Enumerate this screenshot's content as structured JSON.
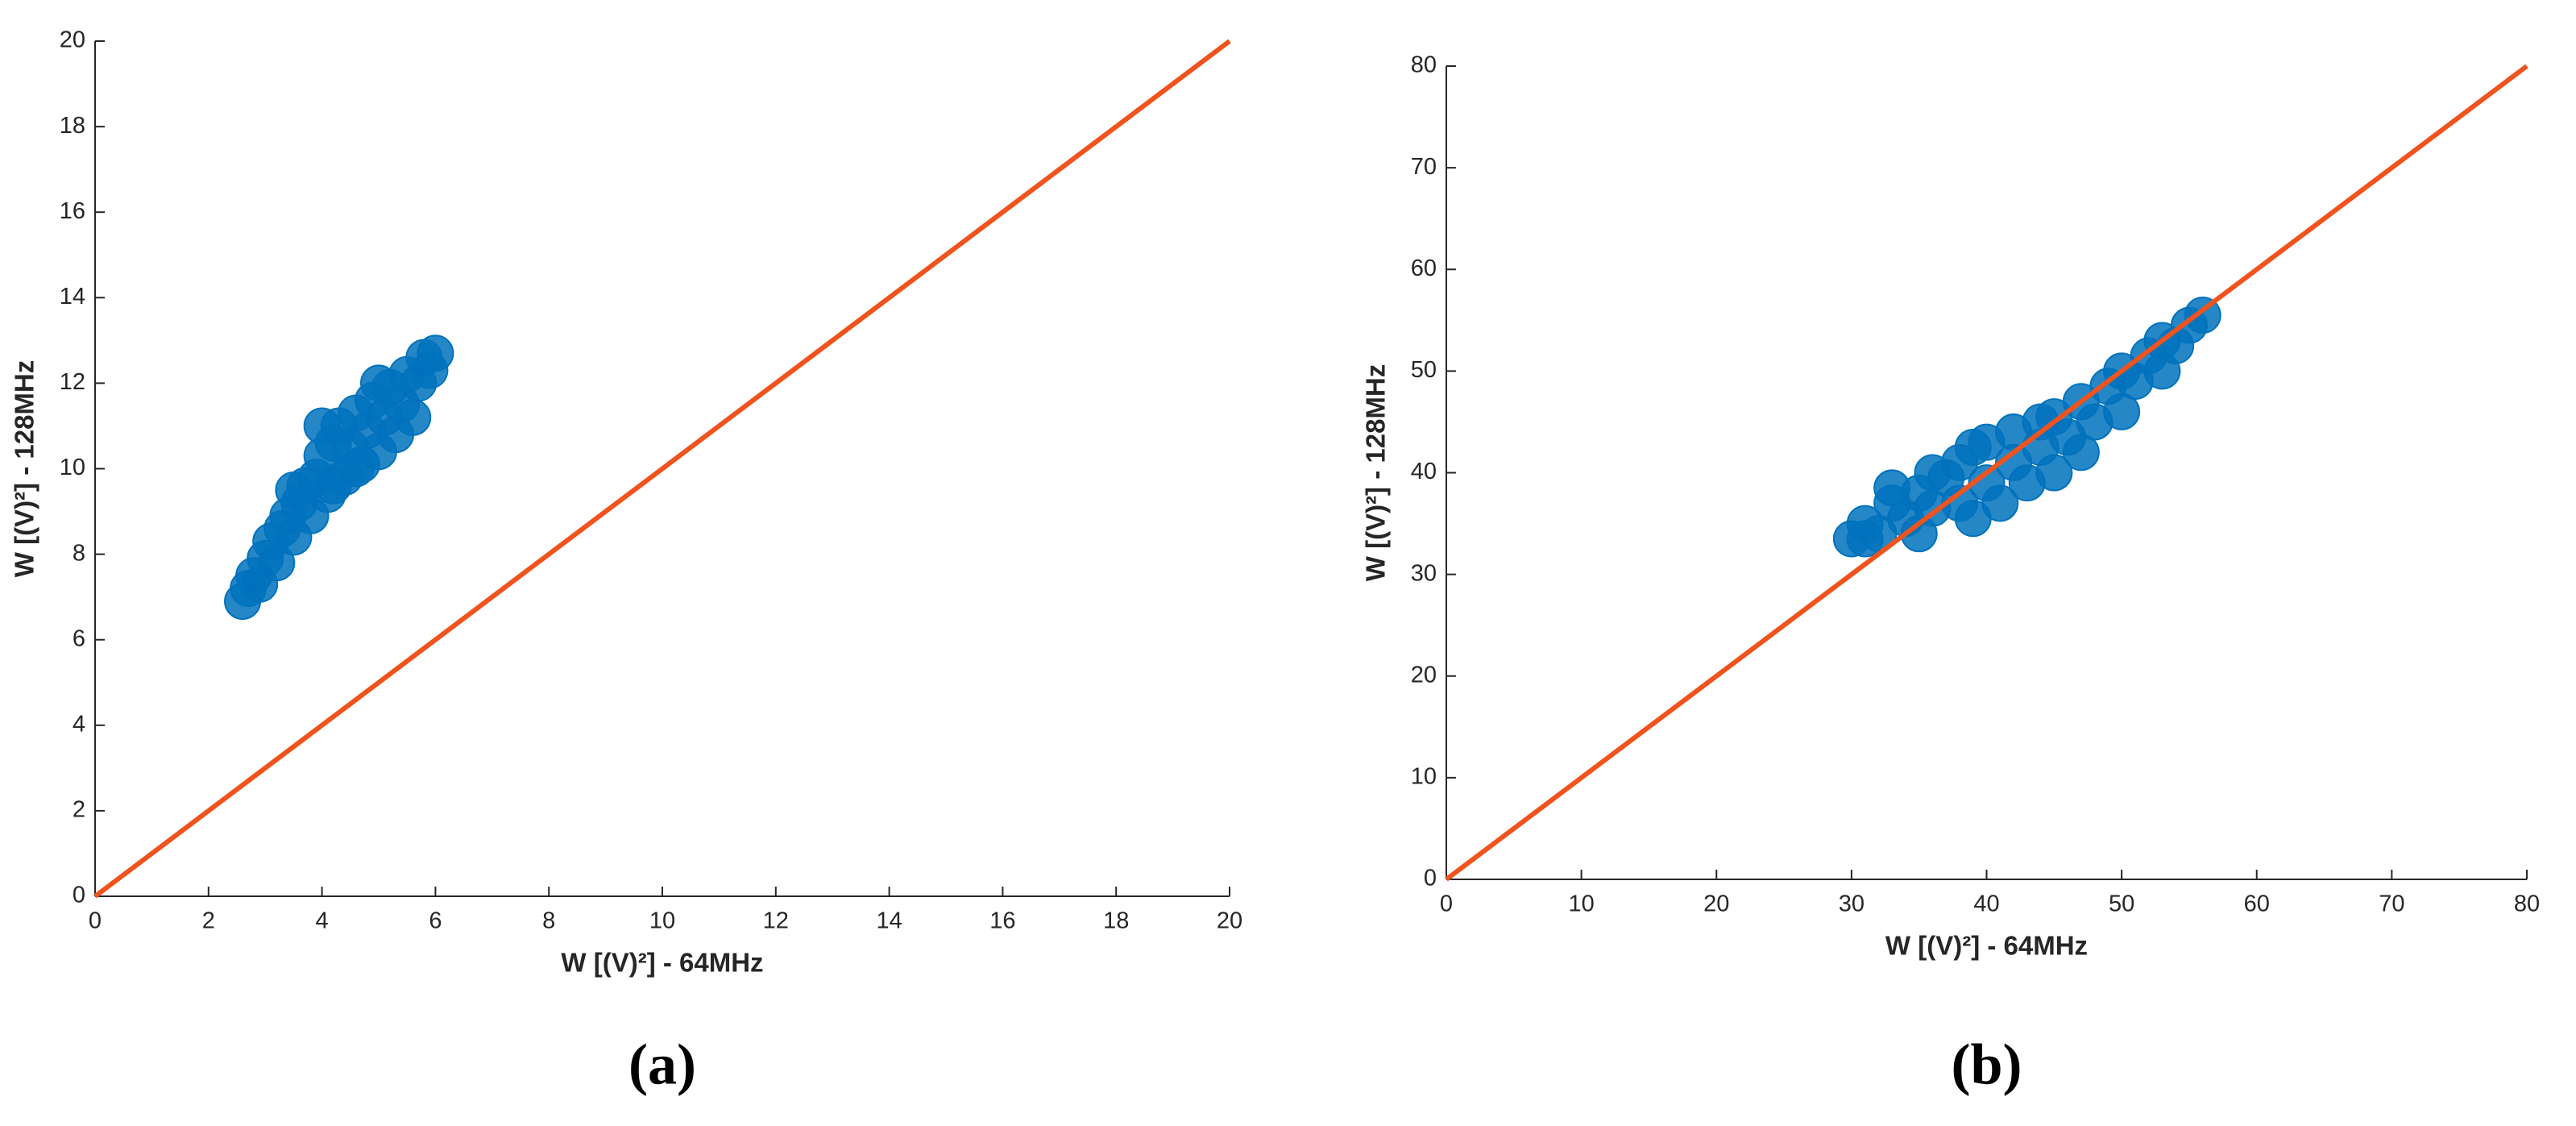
{
  "chart_data": [
    {
      "type": "scatter",
      "panel_label": "(a)",
      "xlabel": "W [(V)²] - 64MHz",
      "ylabel": "W [(V)²] - 128MHz",
      "xlim": [
        0,
        20
      ],
      "ylim": [
        0,
        20
      ],
      "xticks": [
        0,
        2,
        4,
        6,
        8,
        10,
        12,
        14,
        16,
        18,
        20
      ],
      "yticks": [
        0,
        2,
        4,
        6,
        8,
        10,
        12,
        14,
        16,
        18,
        20
      ],
      "grid": false,
      "series": [
        {
          "type": "scatter",
          "color": "#0072bd",
          "x": [
            2.6,
            2.7,
            2.8,
            2.9,
            3.0,
            3.1,
            3.2,
            3.3,
            3.4,
            3.5,
            3.6,
            3.7,
            3.8,
            3.9,
            4.0,
            4.1,
            4.2,
            4.3,
            4.4,
            4.5,
            4.6,
            4.7,
            4.8,
            4.9,
            5.0,
            5.1,
            5.2,
            5.3,
            5.4,
            5.5,
            5.6,
            5.7,
            5.8,
            5.9,
            6.0,
            3.5,
            4.2,
            4.0,
            4.6,
            5.0
          ],
          "values": [
            6.9,
            7.2,
            7.5,
            7.3,
            7.9,
            8.3,
            7.8,
            8.6,
            8.9,
            8.4,
            9.2,
            9.6,
            8.9,
            9.8,
            10.3,
            9.4,
            10.6,
            11.0,
            9.8,
            10.5,
            11.3,
            10.1,
            10.9,
            11.6,
            10.4,
            11.2,
            11.9,
            10.8,
            11.5,
            12.2,
            11.2,
            12.0,
            12.6,
            12.3,
            12.7,
            9.5,
            9.6,
            11.0,
            10.0,
            12.0
          ]
        },
        {
          "type": "line",
          "color": "#f0531c",
          "x": [
            0,
            20
          ],
          "values": [
            0,
            20
          ]
        }
      ]
    },
    {
      "type": "scatter",
      "panel_label": "(b)",
      "xlabel": "W [(V)²] - 64MHz",
      "ylabel": "W [(V)²] - 128MHz",
      "xlim": [
        0,
        80
      ],
      "ylim": [
        0,
        80
      ],
      "xticks": [
        0,
        10,
        20,
        30,
        40,
        50,
        60,
        70,
        80
      ],
      "yticks": [
        0,
        10,
        20,
        30,
        40,
        50,
        60,
        70,
        80
      ],
      "grid": false,
      "series": [
        {
          "type": "scatter",
          "color": "#0072bd",
          "x": [
            30,
            31,
            32,
            33,
            34,
            35,
            35,
            36,
            37,
            38,
            38,
            39,
            40,
            40,
            41,
            42,
            42,
            43,
            44,
            45,
            45,
            46,
            47,
            47,
            48,
            49,
            50,
            50,
            51,
            52,
            53,
            53,
            54,
            55,
            56,
            33,
            36,
            39,
            44,
            31
          ],
          "values": [
            33.5,
            35,
            34,
            37,
            35.5,
            38,
            34,
            36.5,
            39.5,
            37,
            41,
            35.5,
            39,
            43,
            37,
            41,
            44,
            39,
            42.5,
            45.5,
            40,
            43.5,
            47,
            42,
            45,
            48.5,
            46,
            50,
            49,
            51.5,
            50,
            53,
            52.5,
            54.5,
            55.5,
            38.5,
            40,
            42.5,
            45,
            33.5
          ]
        },
        {
          "type": "line",
          "color": "#f0531c",
          "x": [
            0,
            80
          ],
          "values": [
            0,
            80
          ]
        }
      ]
    }
  ]
}
